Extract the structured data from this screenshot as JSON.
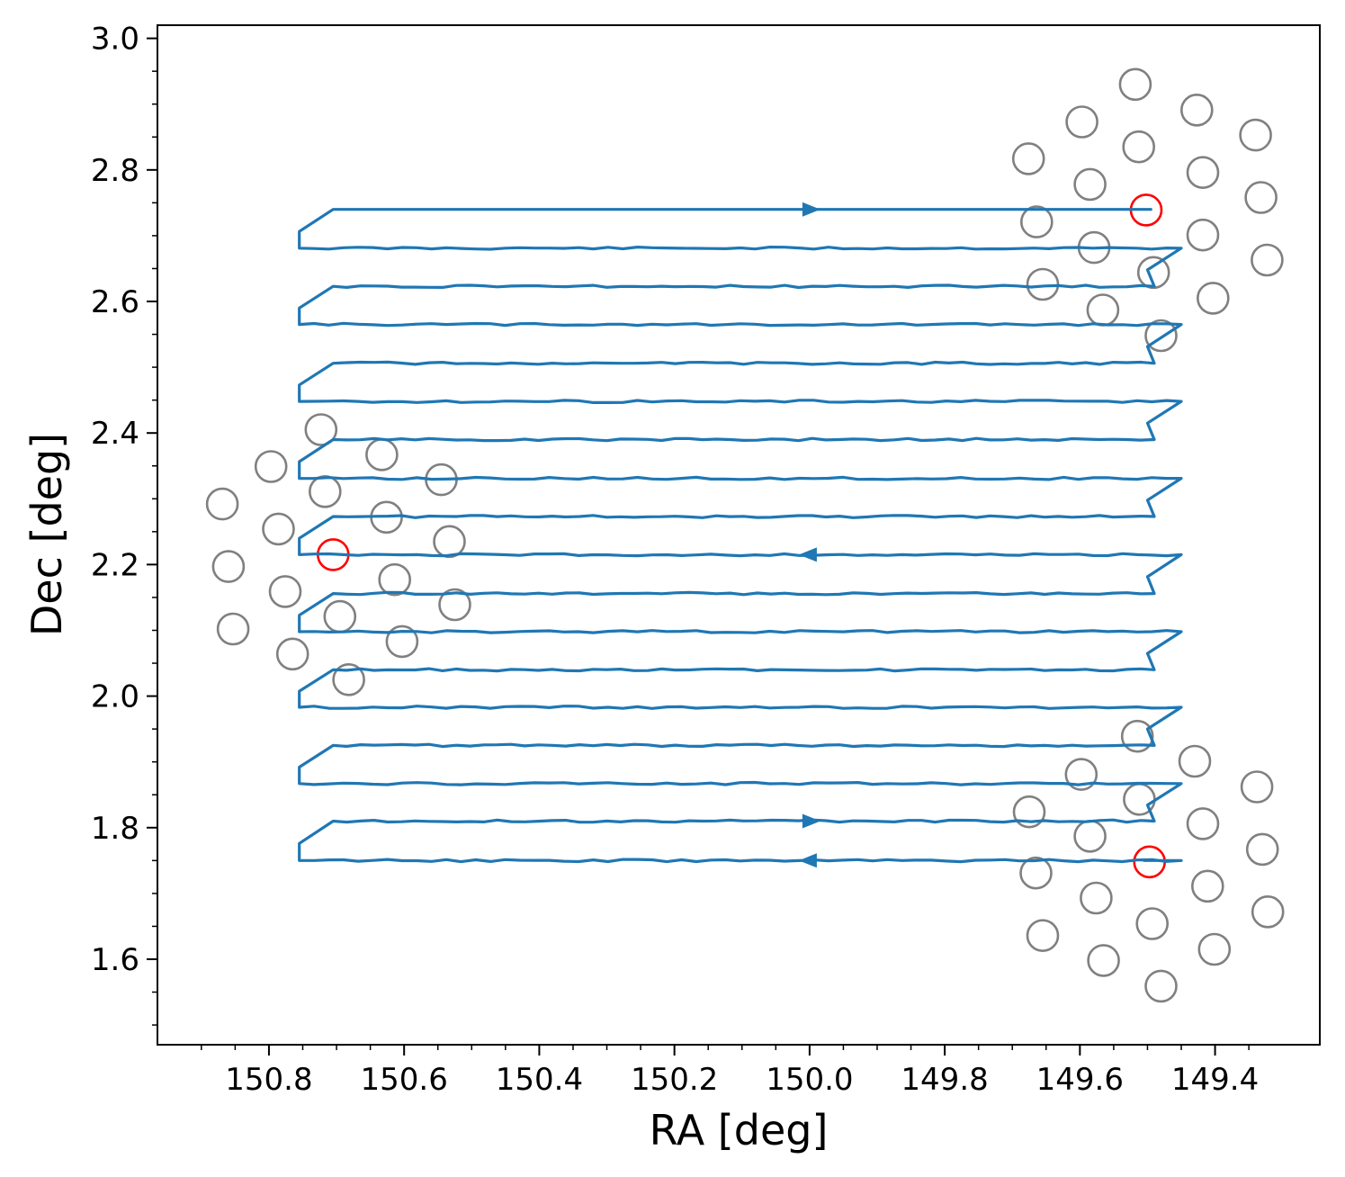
{
  "chart_data": {
    "type": "line",
    "title": "",
    "xlabel": "RA [deg]",
    "ylabel": "Dec [deg]",
    "x_inverted": true,
    "xlim": [
      150.965,
      149.245
    ],
    "ylim": [
      1.47,
      3.02
    ],
    "x_ticks": [
      150.8,
      150.6,
      150.4,
      150.2,
      150.0,
      149.8,
      149.6,
      149.4
    ],
    "x_tick_labels": [
      "150.8",
      "150.6",
      "150.4",
      "150.2",
      "150.0",
      "149.8",
      "149.6",
      "149.4"
    ],
    "y_ticks": [
      1.6,
      1.8,
      2.0,
      2.2,
      2.4,
      2.6,
      2.8,
      3.0
    ],
    "y_tick_labels": [
      "1.6",
      "1.8",
      "2.0",
      "2.2",
      "2.4",
      "2.6",
      "2.8",
      "3.0"
    ],
    "grid": false,
    "legend": "none",
    "colors": {
      "scan_path": "#1f77b4",
      "pointing": "#808080",
      "highlight": "#ff0000",
      "axes": "#000000"
    },
    "scan_path": {
      "name": "",
      "rows_dec": [
        1.75,
        1.81,
        1.867,
        1.925,
        1.983,
        2.04,
        2.098,
        2.156,
        2.215,
        2.273,
        2.331,
        2.39,
        2.448,
        2.506,
        2.565,
        2.623,
        2.681,
        2.74
      ],
      "ra_east": 150.755,
      "ra_east_short": 150.705,
      "ra_west": 149.45,
      "ra_west_short": 149.49,
      "ra_start": 149.495,
      "ra_end": 149.505,
      "arrows": [
        {
          "ra": 150.0,
          "dec": 2.74,
          "dir": "right"
        },
        {
          "ra": 150.0,
          "dec": 2.215,
          "dir": "left"
        },
        {
          "ra": 150.0,
          "dec": 1.81,
          "dir": "right"
        },
        {
          "ra": 150.0,
          "dec": 1.75,
          "dir": "left"
        }
      ]
    },
    "pointings_gray": [
      [
        149.518,
        2.93
      ],
      [
        149.597,
        2.873
      ],
      [
        149.427,
        2.891
      ],
      [
        149.676,
        2.817
      ],
      [
        149.513,
        2.835
      ],
      [
        149.34,
        2.853
      ],
      [
        149.585,
        2.778
      ],
      [
        149.418,
        2.796
      ],
      [
        149.664,
        2.721
      ],
      [
        149.579,
        2.682
      ],
      [
        149.332,
        2.758
      ],
      [
        149.418,
        2.701
      ],
      [
        149.655,
        2.626
      ],
      [
        149.491,
        2.644
      ],
      [
        149.323,
        2.663
      ],
      [
        149.566,
        2.587
      ],
      [
        149.403,
        2.605
      ],
      [
        149.48,
        2.548
      ],
      [
        150.723,
        2.405
      ],
      [
        150.797,
        2.349
      ],
      [
        150.633,
        2.367
      ],
      [
        150.869,
        2.292
      ],
      [
        150.717,
        2.311
      ],
      [
        150.545,
        2.329
      ],
      [
        150.786,
        2.254
      ],
      [
        150.626,
        2.272
      ],
      [
        150.86,
        2.197
      ],
      [
        150.533,
        2.235
      ],
      [
        150.614,
        2.177
      ],
      [
        150.776,
        2.159
      ],
      [
        150.853,
        2.102
      ],
      [
        150.525,
        2.139
      ],
      [
        150.695,
        2.121
      ],
      [
        150.765,
        2.064
      ],
      [
        150.603,
        2.083
      ],
      [
        150.682,
        2.025
      ],
      [
        149.515,
        1.939
      ],
      [
        149.598,
        1.881
      ],
      [
        149.43,
        1.901
      ],
      [
        149.675,
        1.824
      ],
      [
        149.512,
        1.843
      ],
      [
        149.418,
        1.806
      ],
      [
        149.338,
        1.862
      ],
      [
        149.585,
        1.787
      ],
      [
        149.665,
        1.731
      ],
      [
        149.33,
        1.767
      ],
      [
        149.576,
        1.693
      ],
      [
        149.411,
        1.711
      ],
      [
        149.322,
        1.672
      ],
      [
        149.655,
        1.636
      ],
      [
        149.493,
        1.654
      ],
      [
        149.565,
        1.598
      ],
      [
        149.401,
        1.615
      ],
      [
        149.48,
        1.559
      ]
    ],
    "pointings_highlight": [
      [
        149.502,
        2.739
      ],
      [
        150.705,
        2.215
      ],
      [
        149.497,
        1.748
      ]
    ]
  }
}
